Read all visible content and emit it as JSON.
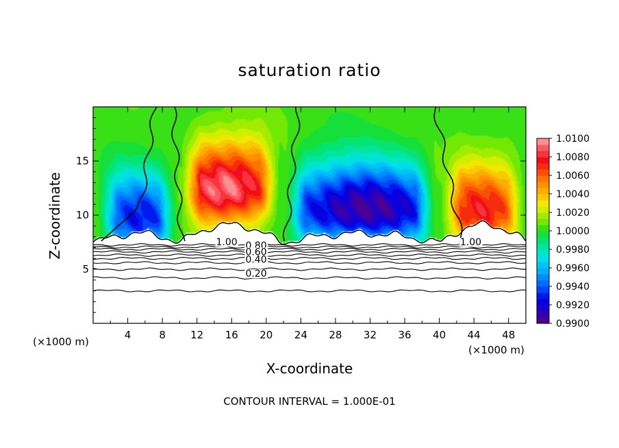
{
  "chart_data": {
    "type": "heatmap",
    "title": "saturation ratio",
    "xlabel": "X-coordinate",
    "ylabel": "Z-coordinate",
    "x_unit_left": "(×1000 m)",
    "x_unit_right": "(×1000 m)",
    "footer": "CONTOUR INTERVAL = 1.000E-01",
    "xlim": [
      0,
      50
    ],
    "ylim": [
      0,
      20
    ],
    "x_ticks": [
      "4",
      "8",
      "12",
      "16",
      "20",
      "24",
      "28",
      "32",
      "36",
      "40",
      "44",
      "48"
    ],
    "y_ticks": [
      "5",
      "10",
      "15"
    ],
    "colorbar": {
      "min": 0.99,
      "max": 1.01,
      "tick_labels": [
        "1.0100",
        "1.0080",
        "1.0060",
        "1.0040",
        "1.0020",
        "1.0000",
        "0.9980",
        "0.9960",
        "0.9940",
        "0.9920",
        "0.9900"
      ]
    },
    "contour_labels": [
      {
        "text": "1.00",
        "x": 14.2,
        "y": 7.2
      },
      {
        "text": "1.00",
        "x": 42.4,
        "y": 7.2
      },
      {
        "text": "0.80",
        "x": 17.6,
        "y": 6.9
      },
      {
        "text": "0.60",
        "x": 17.6,
        "y": 6.3
      },
      {
        "text": "0.40",
        "x": 17.6,
        "y": 5.6
      },
      {
        "text": "0.20",
        "x": 17.6,
        "y": 4.3
      }
    ],
    "features": [
      {
        "kind": "dry pocket",
        "x_range": [
          0.5,
          9.8
        ],
        "peak_x": 5.5,
        "peak_z": 9.8,
        "min_ratio": 0.993
      },
      {
        "kind": "supersaturated cloud",
        "x_range": [
          10.2,
          21.5
        ],
        "peak_x": 15.5,
        "peak_z": 12.5,
        "max_ratio": 1.0095
      },
      {
        "kind": "dry pocket",
        "x_range": [
          22.3,
          39.5
        ],
        "peak_x": 31.0,
        "peak_z": 10.5,
        "min_ratio": 0.9905
      },
      {
        "kind": "supersaturated cloud",
        "x_range": [
          40.3,
          50
        ],
        "peak_x": 45.0,
        "peak_z": 10.5,
        "max_ratio": 1.0075
      }
    ],
    "zero_contour_x": [
      5.0,
      10.2,
      22.3,
      42.5
    ]
  }
}
